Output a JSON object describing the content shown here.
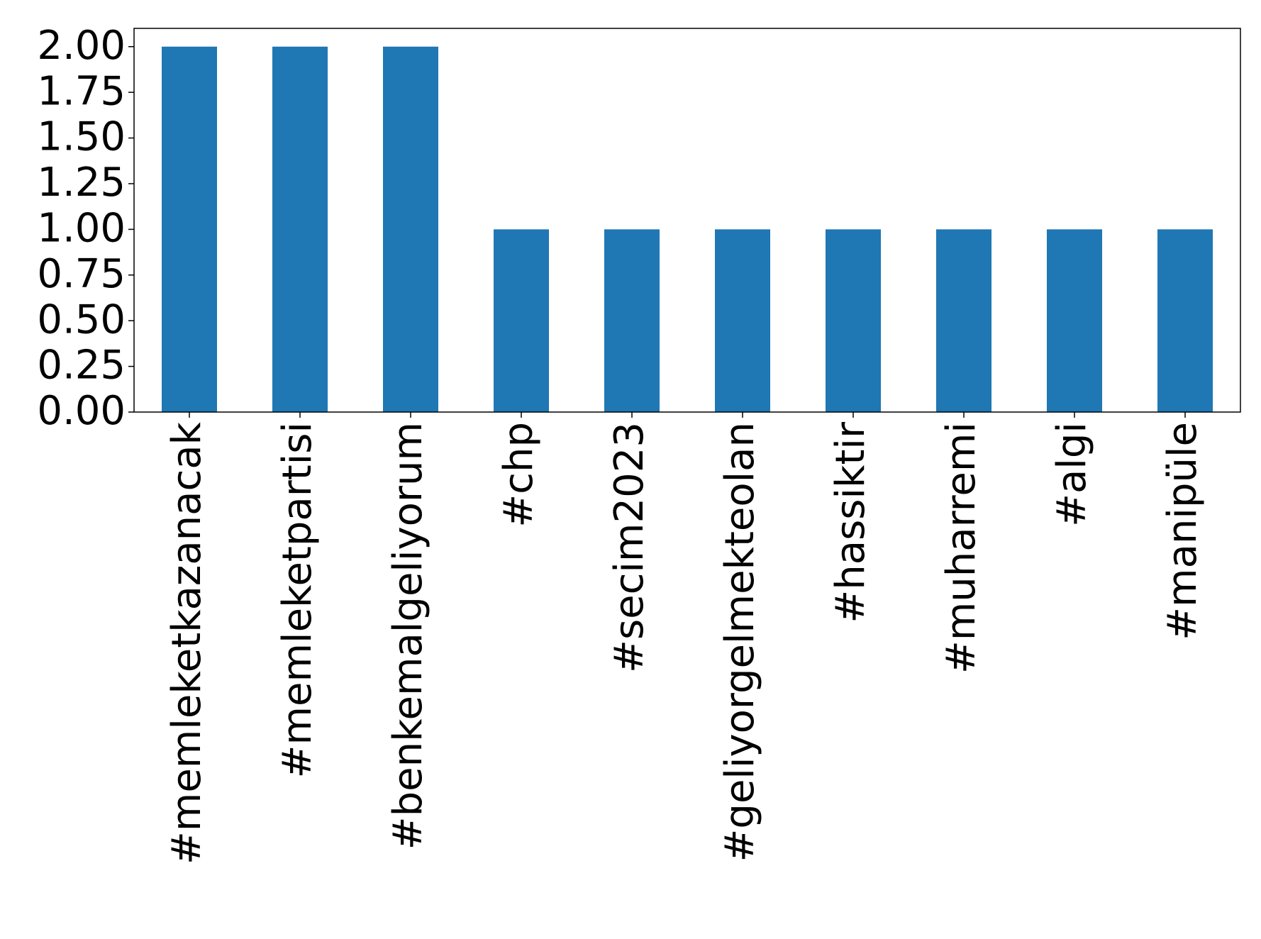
{
  "chart_data": {
    "type": "bar",
    "categories": [
      "#memleketkazanacak",
      "#memleketpartisi",
      "#benkemalgeliyorum",
      "#chp",
      "#secim2023",
      "#geliyorgelmekteolan",
      "#hassiktir",
      "#muharremi",
      "#algi",
      "#manipüle"
    ],
    "values": [
      2,
      2,
      2,
      1,
      1,
      1,
      1,
      1,
      1,
      1
    ],
    "color": "#1f77b4",
    "ylim": [
      0,
      2.1
    ],
    "yticks": [
      {
        "value": 0,
        "label": "0.00"
      },
      {
        "value": 0.25,
        "label": "0.25"
      },
      {
        "value": 0.5,
        "label": "0.50"
      },
      {
        "value": 0.75,
        "label": "0.75"
      },
      {
        "value": 1,
        "label": "1.00"
      },
      {
        "value": 1.25,
        "label": "1.25"
      },
      {
        "value": 1.5,
        "label": "1.50"
      },
      {
        "value": 1.75,
        "label": "1.75"
      },
      {
        "value": 2,
        "label": "2.00"
      }
    ],
    "grid": false
  }
}
